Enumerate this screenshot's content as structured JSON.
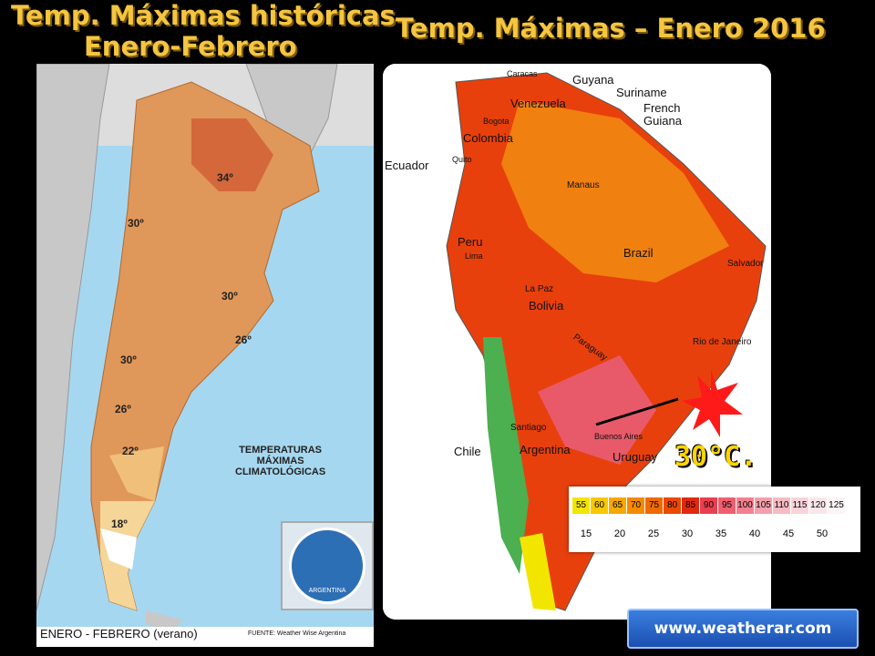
{
  "titles": {
    "left_line1": "Temp. Máximas históricas",
    "left_line2": "Enero-Febrero",
    "right": "Temp. Máximas – Enero 2016"
  },
  "left_map": {
    "isotherm_labels": [
      "34º",
      "30º",
      "30º",
      "26º",
      "30º",
      "26º",
      "22º",
      "18º"
    ],
    "heading_line1": "TEMPERATURAS",
    "heading_line2": "MÁXIMAS",
    "heading_line3": "CLIMATOLÓGICAS",
    "period": "ENERO - FEBRERO (verano)",
    "source": "FUENTE: Weather Wise Argentina",
    "logo_text": "ARGENTINA"
  },
  "right_map": {
    "places": [
      "Caracas",
      "Guyana",
      "Suriname",
      "French Guiana",
      "Venezuela",
      "Bogota",
      "Colombia",
      "Ecuador",
      "Quito",
      "Manaus",
      "Peru",
      "Lima",
      "Brazil",
      "Salvador",
      "La Paz",
      "Bolivia",
      "Paraguay",
      "Rio de Janeiro",
      "Santiago",
      "Buenos Aires",
      "Argentina",
      "Chile",
      "Uruguay"
    ],
    "callout": "30°C.",
    "legend_f": [
      "55",
      "60",
      "65",
      "70",
      "75",
      "80",
      "85",
      "90",
      "95",
      "100",
      "105",
      "110",
      "115",
      "120",
      "125"
    ],
    "legend_c": [
      "15",
      "20",
      "25",
      "30",
      "35",
      "40",
      "45",
      "50"
    ],
    "legend_colors": [
      "#f2e600",
      "#f7c800",
      "#f5a800",
      "#f58a00",
      "#f06a00",
      "#e84a00",
      "#e02a10",
      "#e84050",
      "#ee6070",
      "#f28090",
      "#f4a0ac",
      "#f6bcc4",
      "#f8d4da",
      "#fae6ea",
      "#fcf4f6"
    ]
  },
  "footer": {
    "url": "www.weatherar.com"
  },
  "colors": {
    "title": "#f5c542",
    "ocean": "#a6d7f0"
  }
}
